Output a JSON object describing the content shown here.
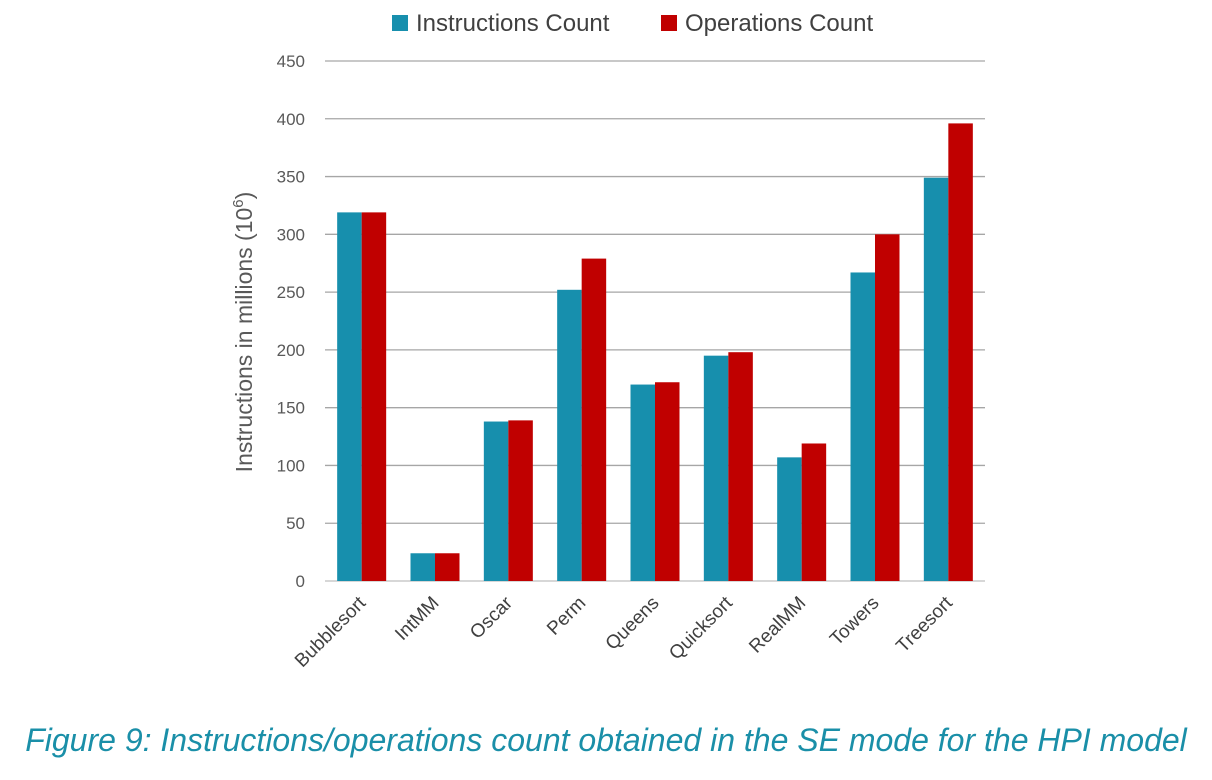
{
  "chart_data": {
    "type": "bar",
    "categories": [
      "Bubblesort",
      "IntMM",
      "Oscar",
      "Perm",
      "Queens",
      "Quicksort",
      "RealMM",
      "Towers",
      "Treesort"
    ],
    "series": [
      {
        "name": "Instructions Count",
        "color": "#178fad",
        "values": [
          319,
          24,
          138,
          252,
          170,
          195,
          107,
          267,
          349
        ]
      },
      {
        "name": "Operations Count",
        "color": "#c00000",
        "values": [
          319,
          24,
          139,
          279,
          172,
          198,
          119,
          300,
          396
        ]
      }
    ],
    "ylabel_main": "Instructions in millions (10",
    "ylabel_exp": "6",
    "ylabel_close": ")",
    "ylim": [
      0,
      450
    ],
    "yticks": [
      "0",
      "50",
      "100",
      "150",
      "200",
      "250",
      "300",
      "350",
      "400",
      "450"
    ],
    "grid": true,
    "legend_position": "top"
  },
  "caption": "Figure 9: Instructions/operations count obtained in the SE mode for the HPI model"
}
